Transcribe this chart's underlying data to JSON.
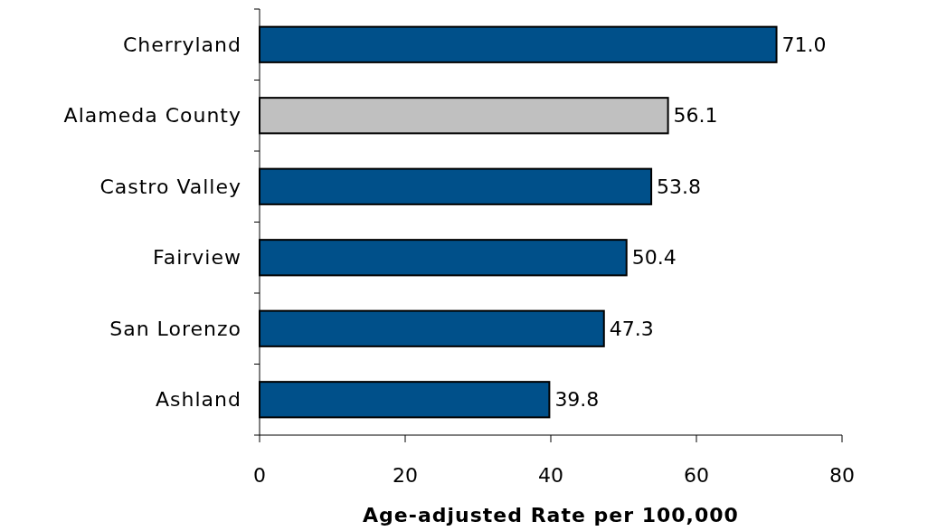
{
  "chart_data": {
    "type": "bar",
    "orientation": "horizontal",
    "xlabel": "Age-adjusted Rate per 100,000",
    "categories": [
      "Cherryland",
      "Alameda County",
      "Castro Valley",
      "Fairview",
      "San Lorenzo",
      "Ashland"
    ],
    "values": [
      71.0,
      56.1,
      53.8,
      50.4,
      47.3,
      39.8
    ],
    "value_labels": [
      "71.0",
      "56.1",
      "53.8",
      "50.4",
      "47.3",
      "39.8"
    ],
    "colors": [
      "#00508a",
      "#c0c0c0",
      "#00508a",
      "#00508a",
      "#00508a",
      "#00508a"
    ],
    "xlim": [
      0,
      80
    ],
    "xticks": [
      0,
      20,
      40,
      60,
      80
    ],
    "grid": false
  }
}
